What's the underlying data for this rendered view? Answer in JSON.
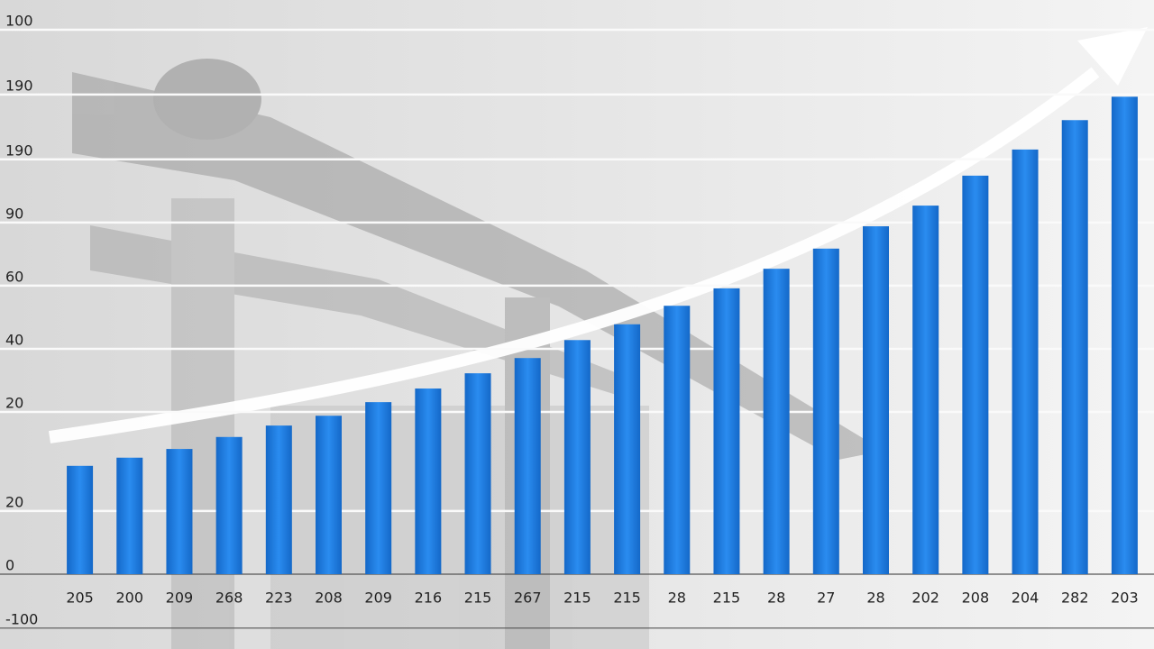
{
  "chart_data": {
    "type": "bar",
    "categories": [
      "205",
      "200",
      "209",
      "268",
      "223",
      "208",
      "209",
      "216",
      "215",
      "267",
      "215",
      "215",
      "28",
      "215",
      "28",
      "27",
      "28",
      "202",
      "208",
      "204",
      "282",
      "203"
    ],
    "values": [
      19.9,
      21.4,
      23.0,
      25.2,
      27.3,
      29.1,
      31.6,
      34.1,
      36.9,
      39.7,
      43.0,
      45.9,
      49.3,
      52.5,
      56.1,
      59.8,
      63.9,
      67.7,
      73.2,
      78.0,
      83.4,
      87.7
    ],
    "color": "#1b7ee0",
    "ylim": [
      -10,
      100
    ],
    "yticks": [
      100,
      {
        "value": 88.1,
        "label": "190"
      },
      {
        "value": 76.2,
        "label": "190"
      },
      {
        "value": 64.6,
        "label": "90"
      },
      {
        "value": 53.0,
        "label": "60"
      },
      {
        "value": 41.4,
        "label": "40"
      },
      {
        "value": 29.8,
        "label": "20"
      },
      {
        "value": 11.6,
        "label": "20"
      },
      0,
      {
        "value": -9.9,
        "label": "-100"
      }
    ],
    "grid": true
  }
}
